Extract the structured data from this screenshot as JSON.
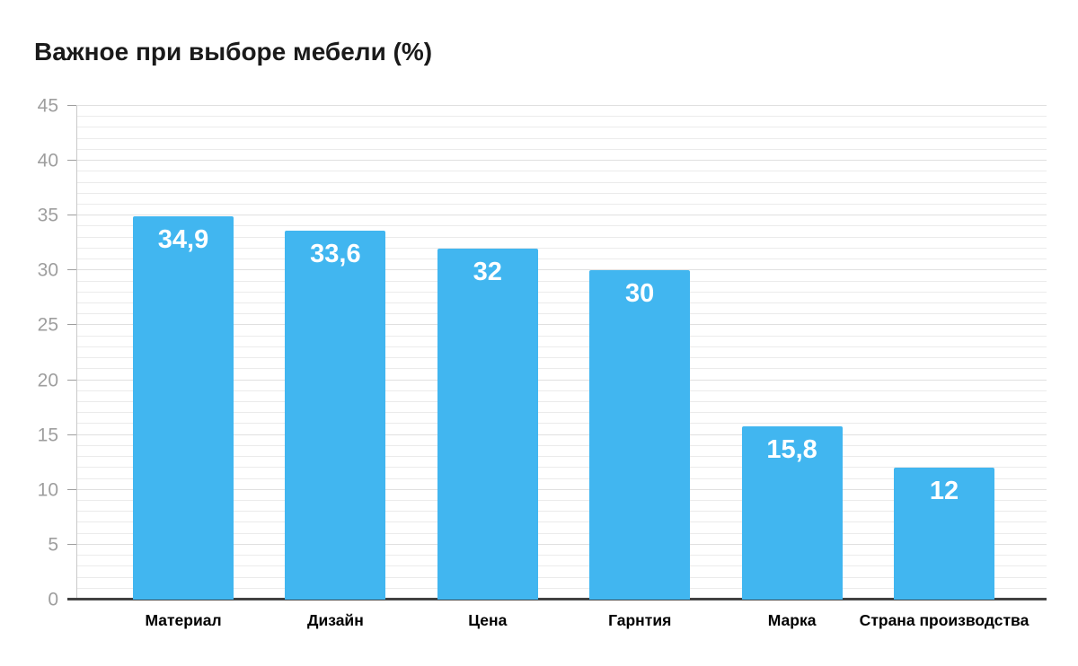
{
  "chart_data": {
    "type": "bar",
    "title": "Важное при выборе мебели (%)",
    "categories": [
      "Материал",
      "Дизайн",
      "Цена",
      "Гарнтия",
      "Марка",
      "Страна производства"
    ],
    "values": [
      34.9,
      33.6,
      32,
      30,
      15.8,
      12
    ],
    "value_labels": [
      "34,9",
      "33,6",
      "32",
      "30",
      "15,8",
      "12"
    ],
    "xlabel": "",
    "ylabel": "",
    "ylim": [
      0,
      45
    ],
    "yticks": [
      0,
      5,
      10,
      15,
      20,
      25,
      30,
      35,
      40,
      45
    ],
    "minor_grid_step": 1,
    "grid": true,
    "legend_position": "none",
    "bar_color": "#41b6f0",
    "value_label_color": "#ffffff",
    "axis_tick_color": "#9e9e9e",
    "category_label_color": "#000000"
  }
}
